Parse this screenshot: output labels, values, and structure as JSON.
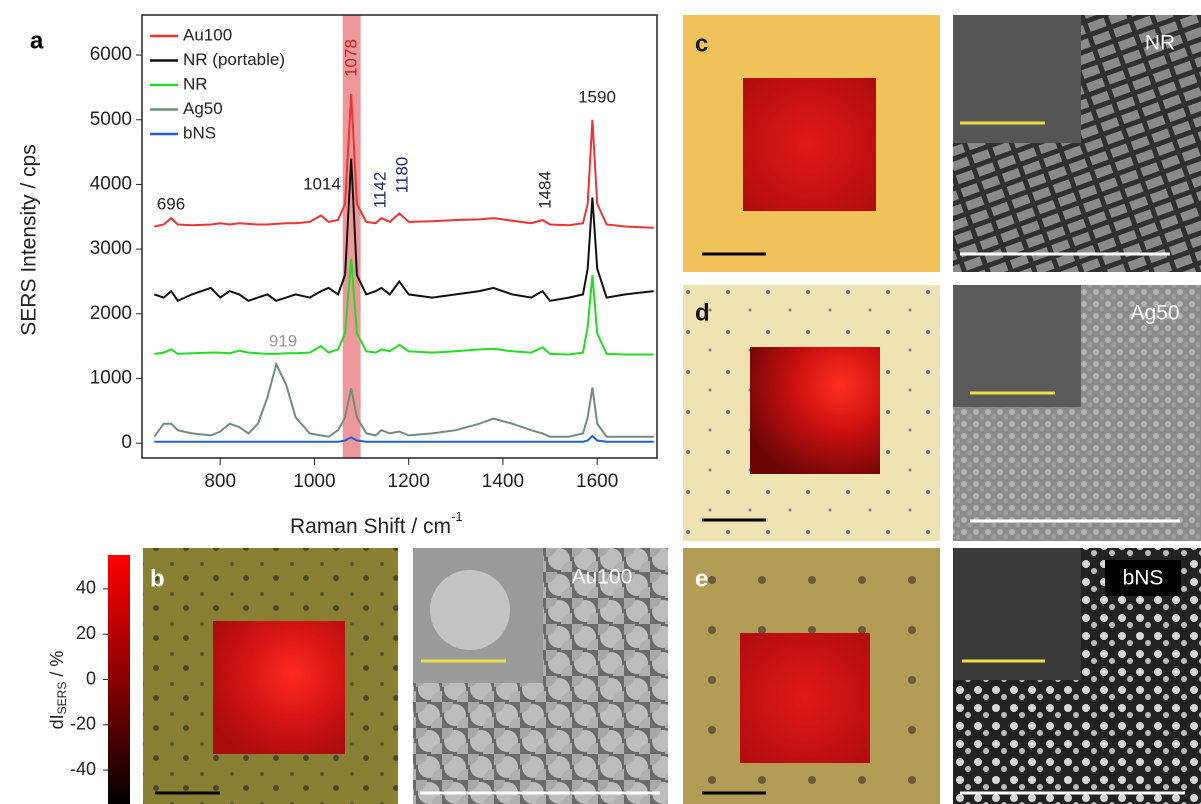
{
  "chart_data": {
    "type": "line",
    "x_label": "Raman Shift / cm",
    "x_label_sup": "-1",
    "y_label": "SERS Intensity / cps",
    "xlim": [
      634,
      1727
    ],
    "xticks": [
      800,
      1000,
      1200,
      1400,
      1600
    ],
    "ylim": [
      -230,
      6620
    ],
    "yticks": [
      0,
      1000,
      2000,
      3000,
      4000,
      5000,
      6000
    ],
    "highlight": {
      "range": [
        1060,
        1098
      ],
      "color": "#e8767a"
    },
    "x": [
      660,
      680,
      696,
      710,
      740,
      780,
      800,
      820,
      840,
      860,
      880,
      900,
      919,
      940,
      960,
      990,
      1014,
      1030,
      1050,
      1065,
      1078,
      1090,
      1110,
      1130,
      1142,
      1160,
      1180,
      1200,
      1250,
      1300,
      1350,
      1380,
      1420,
      1460,
      1484,
      1500,
      1540,
      1570,
      1580,
      1590,
      1600,
      1620,
      1660,
      1720
    ],
    "series": [
      {
        "name": "Au100",
        "color": "#ee3333",
        "values": [
          3350,
          3380,
          3480,
          3380,
          3370,
          3380,
          3400,
          3380,
          3400,
          3390,
          3380,
          3380,
          3390,
          3400,
          3400,
          3420,
          3520,
          3420,
          3450,
          3700,
          5400,
          3700,
          3420,
          3400,
          3480,
          3420,
          3550,
          3420,
          3430,
          3450,
          3460,
          3480,
          3440,
          3400,
          3450,
          3380,
          3370,
          3400,
          3700,
          5000,
          3700,
          3380,
          3350,
          3330
        ]
      },
      {
        "name": "NR (portable)",
        "color": "#111111",
        "values": [
          2300,
          2250,
          2350,
          2200,
          2300,
          2400,
          2250,
          2350,
          2300,
          2200,
          2250,
          2300,
          2200,
          2250,
          2300,
          2250,
          2350,
          2400,
          2300,
          2600,
          4400,
          2600,
          2300,
          2350,
          2400,
          2300,
          2500,
          2300,
          2250,
          2300,
          2350,
          2400,
          2300,
          2250,
          2350,
          2200,
          2250,
          2300,
          2700,
          3800,
          2700,
          2250,
          2300,
          2350
        ]
      },
      {
        "name": "NR",
        "color": "#22dd22",
        "values": [
          1380,
          1400,
          1450,
          1380,
          1390,
          1400,
          1400,
          1390,
          1430,
          1400,
          1390,
          1380,
          1380,
          1390,
          1390,
          1400,
          1500,
          1400,
          1450,
          1700,
          2850,
          1700,
          1420,
          1400,
          1450,
          1420,
          1520,
          1420,
          1400,
          1420,
          1450,
          1460,
          1420,
          1400,
          1480,
          1380,
          1370,
          1400,
          1800,
          2600,
          1700,
          1380,
          1370,
          1370
        ]
      },
      {
        "name": "Ag50",
        "color": "#6e8f7a",
        "values": [
          100,
          300,
          300,
          200,
          150,
          120,
          180,
          300,
          250,
          150,
          300,
          700,
          1220,
          900,
          400,
          150,
          120,
          100,
          200,
          400,
          850,
          400,
          150,
          120,
          200,
          150,
          180,
          120,
          150,
          200,
          300,
          380,
          300,
          200,
          150,
          100,
          100,
          150,
          400,
          860,
          300,
          100,
          100,
          100
        ]
      },
      {
        "name": "bNS",
        "color": "#1f5fd6",
        "values": [
          20,
          20,
          20,
          20,
          20,
          20,
          20,
          20,
          20,
          20,
          20,
          20,
          20,
          20,
          20,
          20,
          20,
          20,
          20,
          40,
          90,
          40,
          20,
          20,
          20,
          20,
          20,
          20,
          20,
          20,
          20,
          20,
          20,
          20,
          20,
          20,
          20,
          20,
          40,
          110,
          40,
          20,
          20,
          20
        ]
      }
    ],
    "annotations": [
      {
        "text": "696",
        "color": "#222222"
      },
      {
        "text": "1014",
        "color": "#222222"
      },
      {
        "text": "1078",
        "color": "#cc2222"
      },
      {
        "text": "1142",
        "color": "#1a2a6a"
      },
      {
        "text": "1180",
        "color": "#1a2a6a"
      },
      {
        "text": "1484",
        "color": "#222222"
      },
      {
        "text": "1590",
        "color": "#222222"
      },
      {
        "text": "919",
        "color": "#999999"
      }
    ]
  },
  "colorbar": {
    "label": "dI",
    "label_sub": "SERS",
    "label_suffix": " / %",
    "clim": [
      -55,
      55
    ],
    "ticks": [
      40,
      20,
      0,
      -20,
      -40
    ]
  },
  "panels": {
    "a": "a",
    "b": "b",
    "c": "c",
    "d": "d",
    "e": "e"
  },
  "image_labels": {
    "c": "NR",
    "d": "Ag50",
    "b": "Au100",
    "e": "bNS"
  }
}
